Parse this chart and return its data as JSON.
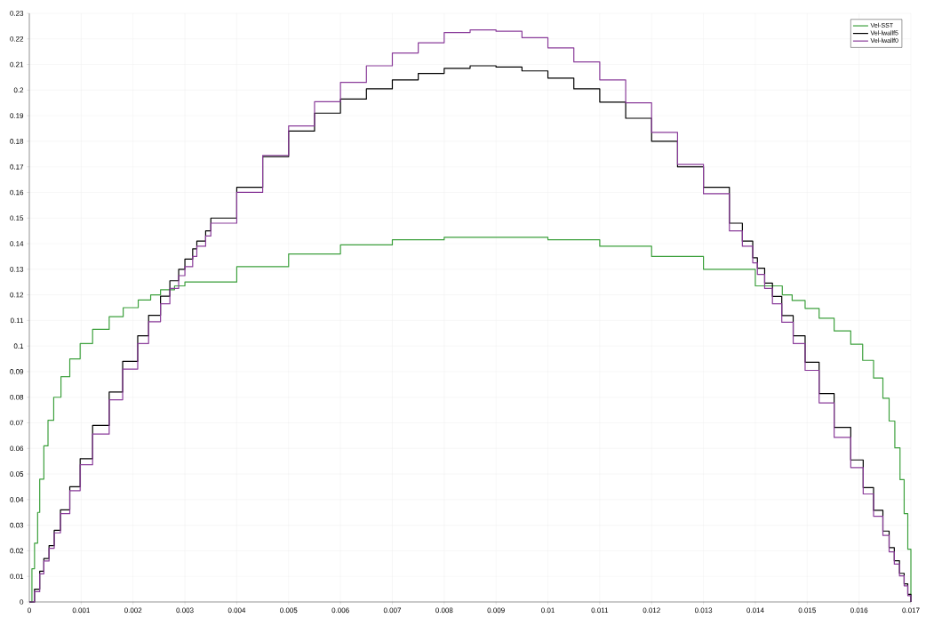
{
  "chart_data": {
    "type": "step",
    "xlim": [
      0,
      0.017
    ],
    "ylim": [
      0,
      0.23
    ],
    "xticks": [
      0,
      0.001,
      0.002,
      0.003,
      0.004,
      0.005,
      0.006,
      0.007,
      0.008,
      0.009,
      0.01,
      0.011,
      0.012,
      0.013,
      0.014,
      0.015,
      0.016,
      0.017
    ],
    "yticks": [
      0,
      0.01,
      0.02,
      0.03,
      0.04,
      0.05,
      0.06,
      0.07,
      0.08,
      0.09,
      0.1,
      0.11,
      0.12,
      0.13,
      0.14,
      0.15,
      0.16,
      0.17,
      0.18,
      0.19,
      0.2,
      0.21,
      0.22,
      0.23
    ],
    "grid": true,
    "legend": "top right",
    "marker": "none",
    "line_style": "solid",
    "series": [
      {
        "name": "Vel-SST",
        "color": "#3ca03c",
        "x": [
          0,
          5e-05,
          0.0001,
          0.00016,
          0.0002,
          0.00028,
          0.00036,
          0.00047,
          0.00061,
          0.00078,
          0.00098,
          0.00122,
          0.00154,
          0.00181,
          0.0021,
          0.00234,
          0.00253,
          0.0028,
          0.003,
          0.004,
          0.005,
          0.006,
          0.007,
          0.008,
          0.009,
          0.01,
          0.011,
          0.012,
          0.013,
          0.014,
          0.01452,
          0.01471,
          0.01496,
          0.01523,
          0.01552,
          0.01584,
          0.01607,
          0.01628,
          0.01646,
          0.01658,
          0.01669,
          0.01679,
          0.01687,
          0.01694,
          0.017
        ],
        "values": [
          0,
          0.013,
          0.023,
          0.035,
          0.048,
          0.061,
          0.071,
          0.08,
          0.088,
          0.095,
          0.101,
          0.1065,
          0.1115,
          0.115,
          0.118,
          0.12,
          0.122,
          0.1235,
          0.125,
          0.131,
          0.136,
          0.1395,
          0.1415,
          0.1425,
          0.1425,
          0.1415,
          0.139,
          0.135,
          0.13,
          0.1235,
          0.12,
          0.1178,
          0.1147,
          0.1109,
          0.1059,
          0.1007,
          0.0944,
          0.0875,
          0.0796,
          0.0707,
          0.0602,
          0.0478,
          0.0345,
          0.0206,
          0
        ]
      },
      {
        "name": "Vel-lwallf5",
        "color": "#000000",
        "x": [
          0,
          0.0001,
          0.0002,
          0.00028,
          0.00038,
          0.00048,
          0.0006,
          0.00078,
          0.00098,
          0.00122,
          0.00154,
          0.0018,
          0.00209,
          0.0023,
          0.00253,
          0.00271,
          0.00288,
          0.003,
          0.00315,
          0.00323,
          0.0034,
          0.0035,
          0.004,
          0.0045,
          0.005,
          0.0055,
          0.006,
          0.0065,
          0.007,
          0.0075,
          0.008,
          0.0085,
          0.009,
          0.0095,
          0.01,
          0.0105,
          0.011,
          0.0115,
          0.012,
          0.0125,
          0.013,
          0.0135,
          0.01375,
          0.01395,
          0.01404,
          0.01418,
          0.01433,
          0.01451,
          0.01473,
          0.01496,
          0.01523,
          0.01552,
          0.01584,
          0.01608,
          0.01628,
          0.01646,
          0.01658,
          0.01668,
          0.01678,
          0.01687,
          0.01694,
          0.017
        ],
        "values": [
          0,
          0.005,
          0.012,
          0.017,
          0.022,
          0.028,
          0.036,
          0.045,
          0.056,
          0.069,
          0.082,
          0.094,
          0.104,
          0.112,
          0.1195,
          0.1255,
          0.13,
          0.134,
          0.138,
          0.141,
          0.145,
          0.15,
          0.162,
          0.174,
          0.184,
          0.191,
          0.1965,
          0.2005,
          0.204,
          0.2065,
          0.2085,
          0.2095,
          0.209,
          0.2075,
          0.2047,
          0.2005,
          0.1953,
          0.189,
          0.18,
          0.17,
          0.162,
          0.148,
          0.141,
          0.1345,
          0.1304,
          0.1246,
          0.1194,
          0.1119,
          0.104,
          0.0937,
          0.0814,
          0.0682,
          0.0555,
          0.0447,
          0.0358,
          0.0277,
          0.0212,
          0.0161,
          0.0112,
          0.0071,
          0.003,
          0
        ]
      },
      {
        "name": "Vel-lwallf0",
        "color": "#8a3c9a",
        "x": [
          0,
          0.0001,
          0.0002,
          0.00028,
          0.00038,
          0.00048,
          0.0006,
          0.00078,
          0.00098,
          0.00122,
          0.00154,
          0.0018,
          0.00209,
          0.0023,
          0.00253,
          0.00271,
          0.00288,
          0.003,
          0.00315,
          0.00323,
          0.0034,
          0.0035,
          0.004,
          0.0045,
          0.005,
          0.0055,
          0.006,
          0.0065,
          0.007,
          0.0075,
          0.008,
          0.0085,
          0.009,
          0.0095,
          0.01,
          0.0105,
          0.011,
          0.0115,
          0.012,
          0.0125,
          0.013,
          0.0135,
          0.01375,
          0.01395,
          0.01404,
          0.01418,
          0.01433,
          0.01451,
          0.01473,
          0.01496,
          0.01523,
          0.01552,
          0.01584,
          0.01608,
          0.01628,
          0.01646,
          0.01658,
          0.01668,
          0.01678,
          0.01687,
          0.01694,
          0.017
        ],
        "values": [
          0,
          0.004,
          0.011,
          0.016,
          0.021,
          0.027,
          0.0345,
          0.0435,
          0.0536,
          0.0656,
          0.079,
          0.091,
          0.101,
          0.1095,
          0.1165,
          0.1225,
          0.1275,
          0.131,
          0.135,
          0.139,
          0.143,
          0.148,
          0.16,
          0.1745,
          0.186,
          0.1955,
          0.203,
          0.2095,
          0.2145,
          0.2185,
          0.2225,
          0.2235,
          0.223,
          0.2205,
          0.2165,
          0.211,
          0.204,
          0.195,
          0.1835,
          0.171,
          0.1595,
          0.145,
          0.139,
          0.1325,
          0.128,
          0.1225,
          0.1165,
          0.1093,
          0.101,
          0.0905,
          0.0778,
          0.0643,
          0.0525,
          0.0422,
          0.0335,
          0.026,
          0.0196,
          0.0148,
          0.0102,
          0.0063,
          0.0025,
          0
        ]
      }
    ]
  }
}
